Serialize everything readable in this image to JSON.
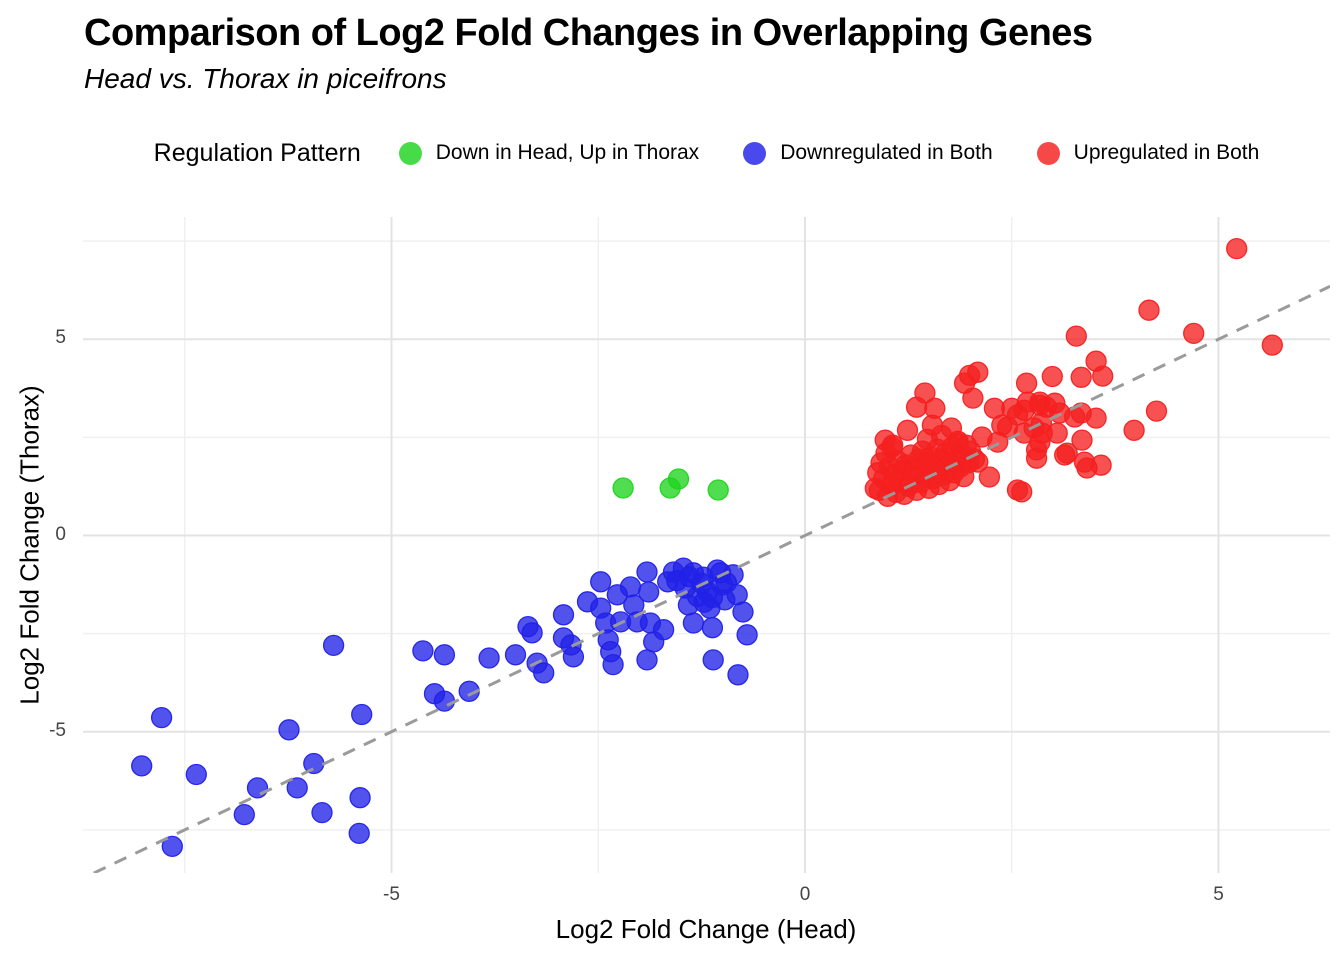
{
  "chart_data": {
    "type": "scatter",
    "title": "Comparison of Log2 Fold Changes in Overlapping Genes",
    "subtitle": "Head vs. Thorax in piceifrons",
    "legend_title": "Regulation Pattern",
    "legend_position": "top",
    "xlabel": "Log2 Fold Change (Head)",
    "ylabel": "Log2 Fold Change (Thorax)",
    "xlim": [
      -8.73,
      6.35
    ],
    "ylim": [
      -8.6,
      8.11
    ],
    "x_ticks": [
      -5,
      0,
      5
    ],
    "y_ticks": [
      -5,
      0,
      5
    ],
    "x_minor_ticks": [
      -7.5,
      -2.5,
      2.5
    ],
    "y_minor_ticks": [
      -7.5,
      -2.5,
      2.5,
      7.5
    ],
    "grid": true,
    "identity_line": {
      "style": "dashed",
      "color": "#9A9A9A",
      "equation": "y = x"
    },
    "series": [
      {
        "name": "Down in Head, Up in Thorax",
        "color": "#1FD41F",
        "points": [
          [
            -2.2,
            1.21
          ],
          [
            -1.63,
            1.21
          ],
          [
            -1.53,
            1.44
          ],
          [
            -1.05,
            1.16
          ]
        ]
      },
      {
        "name": "Downregulated in Both",
        "color": "#2121E8",
        "points": [
          [
            -8.02,
            -5.87
          ],
          [
            -7.78,
            -4.64
          ],
          [
            -7.36,
            -6.09
          ],
          [
            -7.65,
            -7.92
          ],
          [
            -6.62,
            -6.43
          ],
          [
            -6.78,
            -7.11
          ],
          [
            -6.24,
            -4.95
          ],
          [
            -6.14,
            -6.43
          ],
          [
            -5.94,
            -5.81
          ],
          [
            -5.84,
            -7.06
          ],
          [
            -5.7,
            -2.8
          ],
          [
            -5.36,
            -4.56
          ],
          [
            -5.38,
            -6.68
          ],
          [
            -5.39,
            -7.59
          ],
          [
            -4.62,
            -2.94
          ],
          [
            -4.36,
            -3.04
          ],
          [
            -4.48,
            -4.03
          ],
          [
            -4.36,
            -4.22
          ],
          [
            -4.06,
            -3.97
          ],
          [
            -3.82,
            -3.12
          ],
          [
            -3.5,
            -3.04
          ],
          [
            -3.35,
            -2.32
          ],
          [
            -3.3,
            -2.48
          ],
          [
            -3.24,
            -3.25
          ],
          [
            -3.16,
            -3.5
          ],
          [
            -2.92,
            -2.02
          ],
          [
            -2.92,
            -2.61
          ],
          [
            -2.83,
            -2.79
          ],
          [
            -2.8,
            -3.09
          ],
          [
            -2.63,
            -1.69
          ],
          [
            -2.47,
            -1.18
          ],
          [
            -2.47,
            -1.85
          ],
          [
            -2.41,
            -2.23
          ],
          [
            -2.38,
            -2.66
          ],
          [
            -2.35,
            -2.96
          ],
          [
            -2.32,
            -3.29
          ],
          [
            -2.27,
            -1.51
          ],
          [
            -2.23,
            -2.2
          ],
          [
            -2.11,
            -1.31
          ],
          [
            -2.07,
            -1.77
          ],
          [
            -2.03,
            -2.2
          ],
          [
            -1.91,
            -0.93
          ],
          [
            -1.89,
            -1.44
          ],
          [
            -1.87,
            -2.23
          ],
          [
            -1.83,
            -2.71
          ],
          [
            -1.91,
            -3.17
          ],
          [
            -1.71,
            -2.4
          ],
          [
            -1.66,
            -1.18
          ],
          [
            -1.59,
            -0.93
          ],
          [
            -1.47,
            -0.83
          ],
          [
            -1.45,
            -1.34
          ],
          [
            -1.41,
            -1.77
          ],
          [
            -1.35,
            -2.23
          ],
          [
            -1.23,
            -1.06
          ],
          [
            -1.18,
            -1.44
          ],
          [
            -1.15,
            -1.85
          ],
          [
            -1.12,
            -2.35
          ],
          [
            -1.06,
            -0.88
          ],
          [
            -1.0,
            -1.26
          ],
          [
            -0.97,
            -1.64
          ],
          [
            -0.87,
            -1.0
          ],
          [
            -0.82,
            -1.51
          ],
          [
            -0.75,
            -1.95
          ],
          [
            -1.11,
            -3.17
          ],
          [
            -0.81,
            -3.55
          ],
          [
            -0.7,
            -2.53
          ],
          [
            -1.55,
            -1.15
          ],
          [
            -1.3,
            -1.55
          ],
          [
            -1.22,
            -1.7
          ],
          [
            -1.4,
            -1.05
          ],
          [
            -0.95,
            -1.2
          ],
          [
            -1.12,
            -1.58
          ],
          [
            -1.02,
            -0.95
          ],
          [
            -1.35,
            -0.95
          ],
          [
            -1.25,
            -1.22
          ]
        ]
      },
      {
        "name": "Upregulated in Both",
        "color": "#F52020",
        "points": [
          [
            5.22,
            7.31
          ],
          [
            4.16,
            5.74
          ],
          [
            4.7,
            5.15
          ],
          [
            5.65,
            4.85
          ],
          [
            3.28,
            5.08
          ],
          [
            3.52,
            4.44
          ],
          [
            2.99,
            4.05
          ],
          [
            3.34,
            4.03
          ],
          [
            3.6,
            4.06
          ],
          [
            2.68,
            3.88
          ],
          [
            2.09,
            4.16
          ],
          [
            1.99,
            4.08
          ],
          [
            1.93,
            3.88
          ],
          [
            2.03,
            3.5
          ],
          [
            1.45,
            3.63
          ],
          [
            1.57,
            3.24
          ],
          [
            1.35,
            3.27
          ],
          [
            2.84,
            3.4
          ],
          [
            2.92,
            3.27
          ],
          [
            2.65,
            3.19
          ],
          [
            2.5,
            3.24
          ],
          [
            3.34,
            3.12
          ],
          [
            3.52,
            2.99
          ],
          [
            4.25,
            3.17
          ],
          [
            3.98,
            2.68
          ],
          [
            3.35,
            2.43
          ],
          [
            2.45,
            2.76
          ],
          [
            2.77,
            2.74
          ],
          [
            2.87,
            2.61
          ],
          [
            2.29,
            3.24
          ],
          [
            2.38,
            2.81
          ],
          [
            2.14,
            2.51
          ],
          [
            2.33,
            2.38
          ],
          [
            2.57,
            3.07
          ],
          [
            2.69,
            3.4
          ],
          [
            2.84,
            3.32
          ],
          [
            3.02,
            3.37
          ],
          [
            3.08,
            3.12
          ],
          [
            2.86,
            2.86
          ],
          [
            2.65,
            2.61
          ],
          [
            2.84,
            2.38
          ],
          [
            3.05,
            2.61
          ],
          [
            3.26,
            3.02
          ],
          [
            3.17,
            2.1
          ],
          [
            3.38,
            1.87
          ],
          [
            3.58,
            1.79
          ],
          [
            3.41,
            1.72
          ],
          [
            2.8,
            2.18
          ],
          [
            2.8,
            1.97
          ],
          [
            3.14,
            2.05
          ],
          [
            2.62,
            1.11
          ],
          [
            2.23,
            1.49
          ],
          [
            2.09,
            1.87
          ],
          [
            1.24,
            2.68
          ],
          [
            1.54,
            2.81
          ],
          [
            1.77,
            2.74
          ],
          [
            1.85,
            2.35
          ],
          [
            0.97,
            2.43
          ],
          [
            1.06,
            2.3
          ],
          [
            2.57,
            1.16
          ],
          [
            0.85,
            1.2
          ],
          [
            0.9,
            1.15
          ],
          [
            0.95,
            1.45
          ],
          [
            1.0,
            1.0
          ],
          [
            1.02,
            1.75
          ],
          [
            1.05,
            1.3
          ],
          [
            1.08,
            1.55
          ],
          [
            1.1,
            1.1
          ],
          [
            1.12,
            1.9
          ],
          [
            1.15,
            1.4
          ],
          [
            1.18,
            1.65
          ],
          [
            1.2,
            1.05
          ],
          [
            1.22,
            1.8
          ],
          [
            1.25,
            1.25
          ],
          [
            1.28,
            2.05
          ],
          [
            1.3,
            1.5
          ],
          [
            1.32,
            1.7
          ],
          [
            1.35,
            1.15
          ],
          [
            1.38,
            1.95
          ],
          [
            1.4,
            1.35
          ],
          [
            1.42,
            2.15
          ],
          [
            1.45,
            1.6
          ],
          [
            1.48,
            1.85
          ],
          [
            1.5,
            1.2
          ],
          [
            1.52,
            2.0
          ],
          [
            1.55,
            1.45
          ],
          [
            1.58,
            1.7
          ],
          [
            1.6,
            2.2
          ],
          [
            1.62,
            1.3
          ],
          [
            1.65,
            1.95
          ],
          [
            1.68,
            1.55
          ],
          [
            1.7,
            2.1
          ],
          [
            1.72,
            1.75
          ],
          [
            1.75,
            1.4
          ],
          [
            1.78,
            2.25
          ],
          [
            1.8,
            1.6
          ],
          [
            1.82,
            1.9
          ],
          [
            1.85,
            2.4
          ],
          [
            1.88,
            1.75
          ],
          [
            1.9,
            2.05
          ],
          [
            1.92,
            1.5
          ],
          [
            1.95,
            2.3
          ],
          [
            1.98,
            1.85
          ],
          [
            2.0,
            2.15
          ],
          [
            2.05,
            1.95
          ],
          [
            0.88,
            1.6
          ],
          [
            0.92,
            1.85
          ],
          [
            0.98,
            2.1
          ],
          [
            1.05,
            2.25
          ],
          [
            1.48,
            2.45
          ],
          [
            1.65,
            2.55
          ]
        ]
      }
    ]
  }
}
